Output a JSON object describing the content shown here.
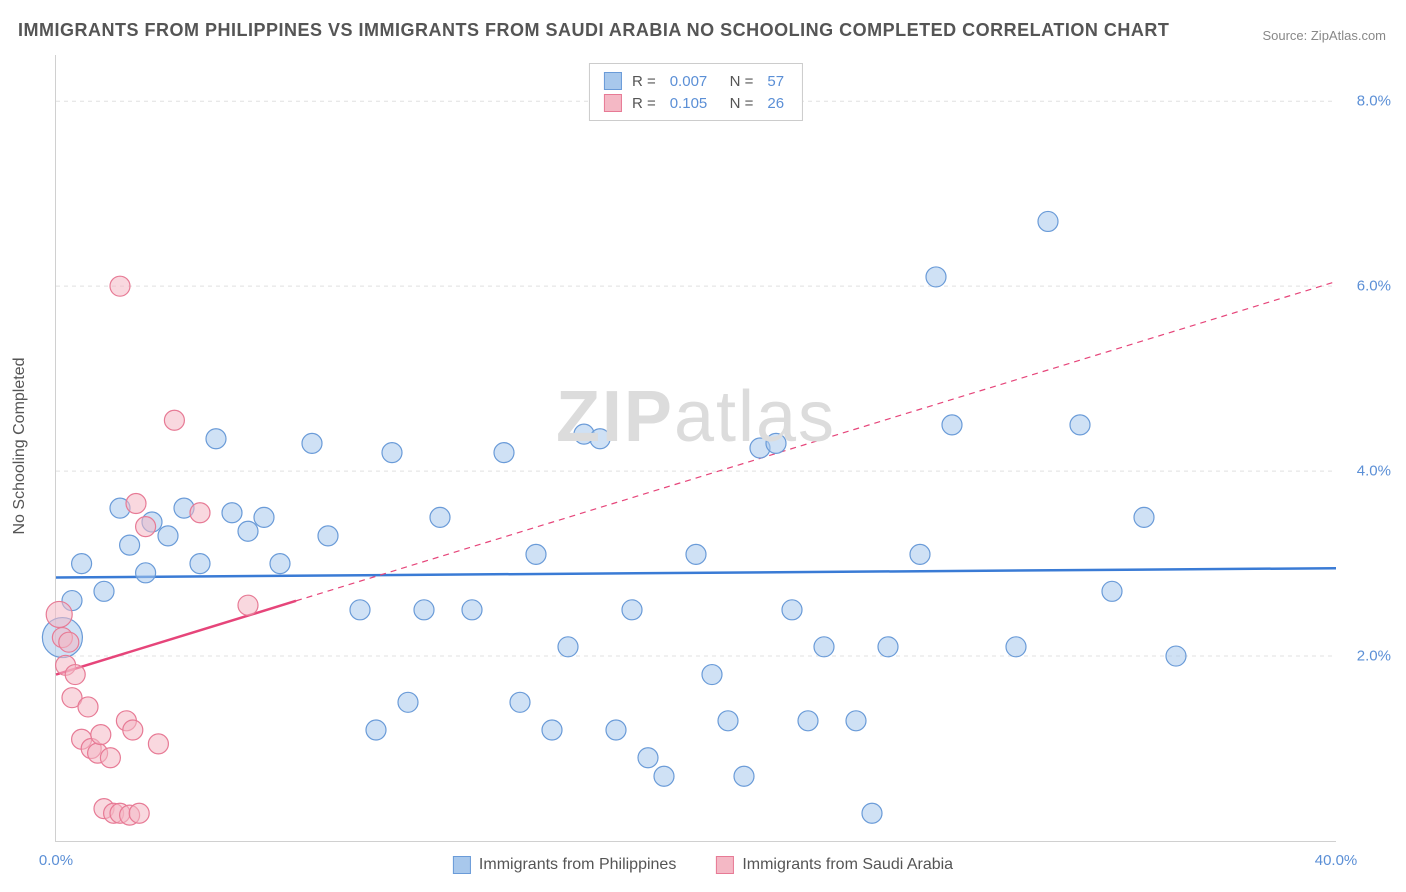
{
  "title": "IMMIGRANTS FROM PHILIPPINES VS IMMIGRANTS FROM SAUDI ARABIA NO SCHOOLING COMPLETED CORRELATION CHART",
  "source": "Source: ZipAtlas.com",
  "ylabel": "No Schooling Completed",
  "watermark_a": "ZIP",
  "watermark_b": "atlas",
  "chart": {
    "type": "scatter",
    "background_color": "#ffffff",
    "grid_color": "#e0e0e0",
    "axis_color": "#d0d0d0",
    "tick_color": "#5b8fd6",
    "xlim": [
      0,
      40
    ],
    "ylim": [
      0,
      8.5
    ],
    "xticks": [
      {
        "v": 0,
        "l": "0.0%"
      },
      {
        "v": 40,
        "l": "40.0%"
      }
    ],
    "yticks": [
      {
        "v": 2,
        "l": "2.0%"
      },
      {
        "v": 4,
        "l": "4.0%"
      },
      {
        "v": 6,
        "l": "6.0%"
      },
      {
        "v": 8,
        "l": "8.0%"
      }
    ],
    "series": [
      {
        "name": "Immigrants from Philippines",
        "color_fill": "#a8c8ec",
        "color_stroke": "#6a9bd8",
        "fill_opacity": 0.55,
        "marker_r": 10,
        "r_value": "0.007",
        "n_value": "57",
        "trend": {
          "x1": 0,
          "y1": 2.85,
          "x2": 40,
          "y2": 2.95,
          "color": "#3a7bd5",
          "width": 2.5,
          "dash": "none",
          "solid_until": 40
        },
        "points": [
          {
            "x": 0.2,
            "y": 2.2,
            "r": 20
          },
          {
            "x": 0.5,
            "y": 2.6
          },
          {
            "x": 0.8,
            "y": 3.0
          },
          {
            "x": 1.5,
            "y": 2.7
          },
          {
            "x": 2.0,
            "y": 3.6
          },
          {
            "x": 2.3,
            "y": 3.2
          },
          {
            "x": 2.8,
            "y": 2.9
          },
          {
            "x": 3.0,
            "y": 3.45
          },
          {
            "x": 3.5,
            "y": 3.3
          },
          {
            "x": 4.0,
            "y": 3.6
          },
          {
            "x": 4.5,
            "y": 3.0
          },
          {
            "x": 5.0,
            "y": 4.35
          },
          {
            "x": 5.5,
            "y": 3.55
          },
          {
            "x": 6.0,
            "y": 3.35
          },
          {
            "x": 6.5,
            "y": 3.5
          },
          {
            "x": 7.0,
            "y": 3.0
          },
          {
            "x": 8.0,
            "y": 4.3
          },
          {
            "x": 8.5,
            "y": 3.3
          },
          {
            "x": 9.5,
            "y": 2.5
          },
          {
            "x": 10.0,
            "y": 1.2
          },
          {
            "x": 10.5,
            "y": 4.2
          },
          {
            "x": 11.0,
            "y": 1.5
          },
          {
            "x": 11.5,
            "y": 2.5
          },
          {
            "x": 12.0,
            "y": 3.5
          },
          {
            "x": 13.0,
            "y": 2.5
          },
          {
            "x": 14.0,
            "y": 4.2
          },
          {
            "x": 14.5,
            "y": 1.5
          },
          {
            "x": 15.0,
            "y": 3.1
          },
          {
            "x": 15.5,
            "y": 1.2
          },
          {
            "x": 16.0,
            "y": 2.1
          },
          {
            "x": 16.5,
            "y": 4.4
          },
          {
            "x": 17.0,
            "y": 4.35
          },
          {
            "x": 17.5,
            "y": 1.2
          },
          {
            "x": 18.0,
            "y": 2.5
          },
          {
            "x": 18.5,
            "y": 0.9
          },
          {
            "x": 19.0,
            "y": 0.7
          },
          {
            "x": 20.0,
            "y": 3.1
          },
          {
            "x": 20.5,
            "y": 1.8
          },
          {
            "x": 21.0,
            "y": 1.3
          },
          {
            "x": 21.5,
            "y": 0.7
          },
          {
            "x": 22.0,
            "y": 4.25
          },
          {
            "x": 22.5,
            "y": 4.3
          },
          {
            "x": 23.0,
            "y": 2.5
          },
          {
            "x": 23.5,
            "y": 1.3
          },
          {
            "x": 24.0,
            "y": 2.1
          },
          {
            "x": 25.0,
            "y": 1.3
          },
          {
            "x": 25.5,
            "y": 0.3
          },
          {
            "x": 26.0,
            "y": 2.1
          },
          {
            "x": 27.0,
            "y": 3.1
          },
          {
            "x": 27.5,
            "y": 6.1
          },
          {
            "x": 28.0,
            "y": 4.5
          },
          {
            "x": 30.0,
            "y": 2.1
          },
          {
            "x": 31.0,
            "y": 6.7
          },
          {
            "x": 32.0,
            "y": 4.5
          },
          {
            "x": 33.0,
            "y": 2.7
          },
          {
            "x": 34.0,
            "y": 3.5
          },
          {
            "x": 35.0,
            "y": 2.0
          }
        ]
      },
      {
        "name": "Immigrants from Saudi Arabia",
        "color_fill": "#f4b8c5",
        "color_stroke": "#e77a95",
        "fill_opacity": 0.55,
        "marker_r": 10,
        "r_value": "0.105",
        "n_value": "26",
        "trend": {
          "x1": 0,
          "y1": 1.8,
          "x2": 40,
          "y2": 6.05,
          "color": "#e6457a",
          "width": 2.5,
          "dash": "6 5",
          "solid_until": 7.5
        },
        "points": [
          {
            "x": 0.1,
            "y": 2.45,
            "r": 13
          },
          {
            "x": 0.2,
            "y": 2.2
          },
          {
            "x": 0.3,
            "y": 1.9
          },
          {
            "x": 0.4,
            "y": 2.15
          },
          {
            "x": 0.5,
            "y": 1.55
          },
          {
            "x": 0.6,
            "y": 1.8
          },
          {
            "x": 0.8,
            "y": 1.1
          },
          {
            "x": 1.0,
            "y": 1.45
          },
          {
            "x": 1.1,
            "y": 1.0
          },
          {
            "x": 1.3,
            "y": 0.95
          },
          {
            "x": 1.4,
            "y": 1.15
          },
          {
            "x": 1.5,
            "y": 0.35
          },
          {
            "x": 1.7,
            "y": 0.9
          },
          {
            "x": 1.8,
            "y": 0.3
          },
          {
            "x": 2.0,
            "y": 0.3
          },
          {
            "x": 2.2,
            "y": 1.3
          },
          {
            "x": 2.3,
            "y": 0.28
          },
          {
            "x": 2.4,
            "y": 1.2
          },
          {
            "x": 2.6,
            "y": 0.3
          },
          {
            "x": 2.0,
            "y": 6.0
          },
          {
            "x": 2.5,
            "y": 3.65
          },
          {
            "x": 2.8,
            "y": 3.4
          },
          {
            "x": 3.2,
            "y": 1.05
          },
          {
            "x": 3.7,
            "y": 4.55
          },
          {
            "x": 4.5,
            "y": 3.55
          },
          {
            "x": 6.0,
            "y": 2.55
          }
        ]
      }
    ]
  },
  "legend_bottom": [
    {
      "label": "Immigrants from Philippines",
      "fill": "#a8c8ec",
      "stroke": "#6a9bd8"
    },
    {
      "label": "Immigrants from Saudi Arabia",
      "fill": "#f4b8c5",
      "stroke": "#e77a95"
    }
  ]
}
